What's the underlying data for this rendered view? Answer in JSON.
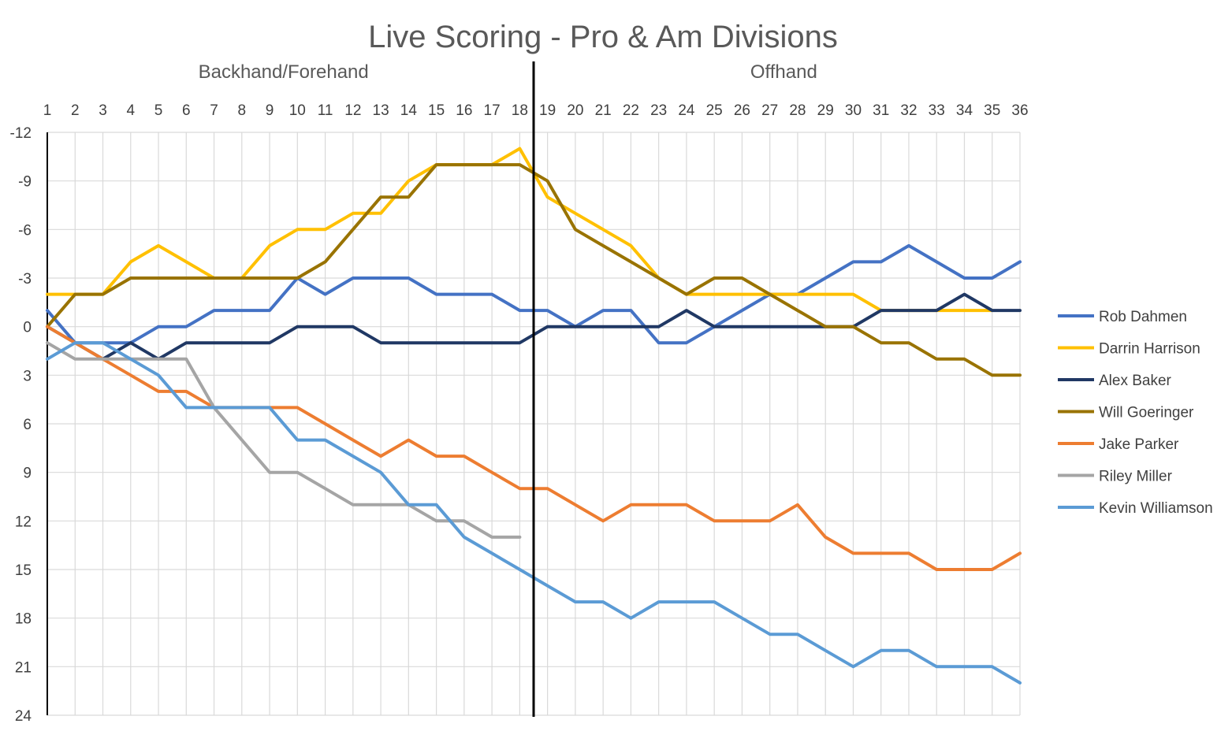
{
  "chart_data": {
    "type": "line",
    "title": "Live Scoring - Pro & Am Divisions",
    "sections": [
      {
        "label": "Backhand/Forehand",
        "from": 1,
        "to": 18
      },
      {
        "label": "Offhand",
        "from": 19,
        "to": 36
      }
    ],
    "divider_after": 18,
    "x": [
      1,
      2,
      3,
      4,
      5,
      6,
      7,
      8,
      9,
      10,
      11,
      12,
      13,
      14,
      15,
      16,
      17,
      18,
      19,
      20,
      21,
      22,
      23,
      24,
      25,
      26,
      27,
      28,
      29,
      30,
      31,
      32,
      33,
      34,
      35,
      36
    ],
    "x_ticks": [
      "1",
      "2",
      "3",
      "4",
      "5",
      "6",
      "7",
      "8",
      "9",
      "10",
      "11",
      "12",
      "13",
      "14",
      "15",
      "16",
      "17",
      "18",
      "19",
      "20",
      "21",
      "22",
      "23",
      "24",
      "25",
      "26",
      "27",
      "28",
      "29",
      "30",
      "31",
      "32",
      "33",
      "34",
      "35",
      "36"
    ],
    "y_ticks": [
      "-12",
      "-9",
      "-6",
      "-3",
      "0",
      "3",
      "6",
      "9",
      "12",
      "15",
      "18",
      "21",
      "24"
    ],
    "ylim": [
      -12,
      24
    ],
    "y_inverted": true,
    "grid": true,
    "legend_position": "right",
    "series": [
      {
        "name": "Rob Dahmen",
        "color": "#4472C4",
        "values": [
          -1,
          1,
          1,
          1,
          0,
          0,
          -1,
          -1,
          -1,
          -3,
          -2,
          -3,
          -3,
          -3,
          -2,
          -2,
          -2,
          -1,
          -1,
          0,
          -1,
          -1,
          1,
          1,
          0,
          -1,
          -2,
          -2,
          -3,
          -4,
          -4,
          -5,
          -4,
          -3,
          -3,
          -4
        ]
      },
      {
        "name": "Darrin Harrison",
        "color": "#FFC000",
        "values": [
          -2,
          -2,
          -2,
          -4,
          -5,
          -4,
          -3,
          -3,
          -5,
          -6,
          -6,
          -7,
          -7,
          -9,
          -10,
          -10,
          -10,
          -11,
          -8,
          -7,
          -6,
          -5,
          -3,
          -2,
          -2,
          -2,
          -2,
          -2,
          -2,
          -2,
          -1,
          -1,
          -1,
          -1,
          -1,
          null
        ]
      },
      {
        "name": "Alex Baker",
        "color": "#203864",
        "values": [
          0,
          1,
          2,
          1,
          2,
          1,
          1,
          1,
          1,
          0,
          0,
          0,
          1,
          1,
          1,
          1,
          1,
          1,
          0,
          0,
          0,
          0,
          0,
          -1,
          0,
          0,
          0,
          0,
          0,
          0,
          -1,
          -1,
          -1,
          -2,
          -1,
          -1
        ]
      },
      {
        "name": "Will Goeringer",
        "color": "#997300",
        "values": [
          0,
          -2,
          -2,
          -3,
          -3,
          -3,
          -3,
          -3,
          -3,
          -3,
          -4,
          -6,
          -8,
          -8,
          -10,
          -10,
          -10,
          -10,
          -9,
          -6,
          -5,
          -4,
          -3,
          -2,
          -3,
          -3,
          -2,
          -1,
          0,
          0,
          1,
          1,
          2,
          2,
          3,
          3
        ]
      },
      {
        "name": "Jake Parker",
        "color": "#ED7D31",
        "values": [
          0,
          1,
          2,
          3,
          4,
          4,
          5,
          5,
          5,
          5,
          6,
          7,
          8,
          7,
          8,
          8,
          9,
          10,
          10,
          11,
          12,
          11,
          11,
          11,
          12,
          12,
          12,
          11,
          13,
          14,
          14,
          14,
          15,
          15,
          15,
          14
        ]
      },
      {
        "name": "Riley Miller",
        "color": "#A5A5A5",
        "values": [
          1,
          2,
          2,
          2,
          2,
          2,
          5,
          7,
          9,
          9,
          10,
          11,
          11,
          11,
          12,
          12,
          13,
          13,
          null,
          null,
          null,
          null,
          null,
          null,
          null,
          null,
          null,
          null,
          null,
          null,
          null,
          null,
          null,
          null,
          null,
          null
        ]
      },
      {
        "name": "Kevin Williamson",
        "color": "#5B9BD5",
        "values": [
          2,
          1,
          1,
          2,
          3,
          5,
          5,
          5,
          5,
          7,
          7,
          8,
          9,
          11,
          11,
          13,
          14,
          15,
          16,
          17,
          17,
          18,
          17,
          17,
          17,
          18,
          19,
          19,
          20,
          21,
          20,
          20,
          21,
          21,
          21,
          22
        ]
      }
    ]
  }
}
